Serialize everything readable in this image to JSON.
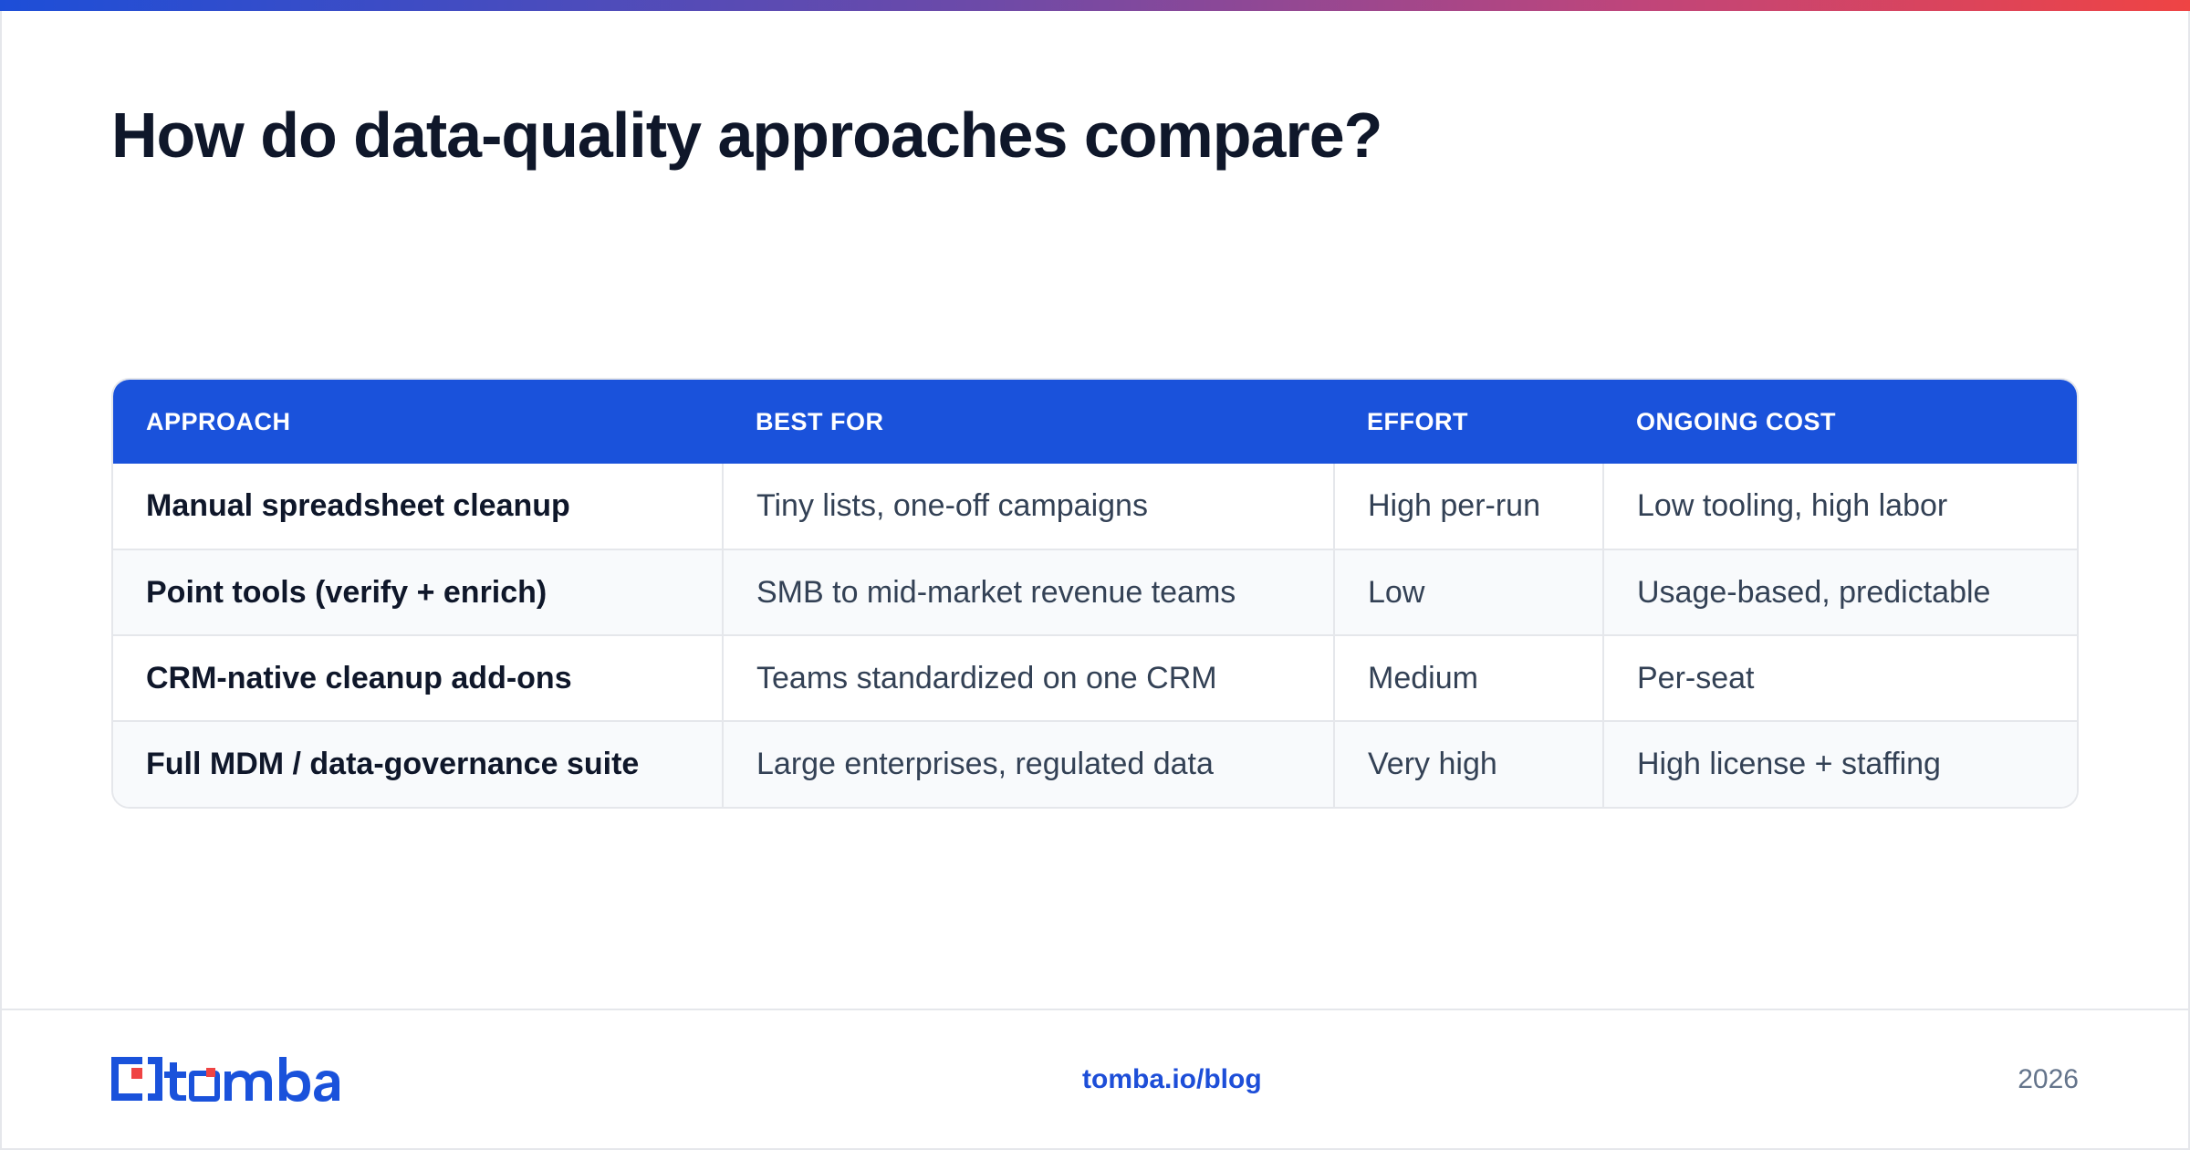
{
  "title": "How do data-quality approaches compare?",
  "table": {
    "headers": [
      "APPROACH",
      "BEST FOR",
      "EFFORT",
      "ONGOING COST"
    ],
    "rows": [
      [
        "Manual spreadsheet cleanup",
        "Tiny lists, one-off campaigns",
        "High per-run",
        "Low tooling, high labor"
      ],
      [
        "Point tools (verify + enrich)",
        "SMB to mid-market revenue teams",
        "Low",
        "Usage-based, predictable"
      ],
      [
        "CRM-native cleanup add-ons",
        "Teams standardized on one CRM",
        "Medium",
        "Per-seat"
      ],
      [
        "Full MDM / data-governance suite",
        "Large enterprises, regulated data",
        "Very high",
        "High license + staffing"
      ]
    ]
  },
  "footer": {
    "logo_text": "tomba",
    "link": "tomba.io/blog",
    "year": "2026"
  },
  "colors": {
    "brand_blue": "#1a52db",
    "accent_red": "#ef4444",
    "title": "#0f172a",
    "muted": "#64748b"
  },
  "icons": {
    "logo": "tomba-logo-icon"
  }
}
